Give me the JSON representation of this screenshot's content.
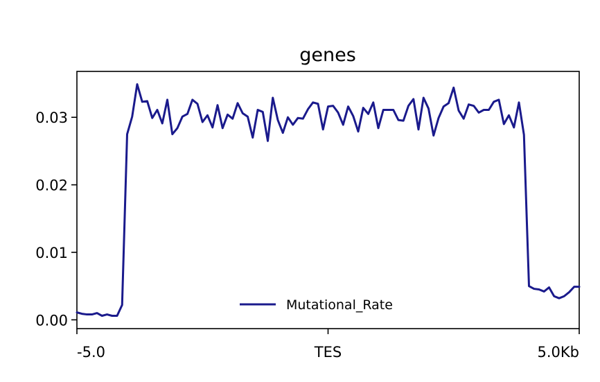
{
  "chart_data": {
    "type": "line",
    "title": "genes",
    "xlabel": "",
    "ylabel": "",
    "x_ticks": [
      "-5.0",
      "TES",
      "5.0Kb"
    ],
    "y_ticks": [
      "0.00",
      "0.01",
      "0.02",
      "0.03"
    ],
    "y_tick_values": [
      0.0,
      0.01,
      0.02,
      0.03
    ],
    "xlim": [
      -5.0,
      5.0
    ],
    "ylim": [
      -0.0013,
      0.0368
    ],
    "grid": false,
    "legend_position": "lower-center",
    "series": [
      {
        "name": "Mutational_Rate",
        "color": "#1a1a8c",
        "x": [
          -5.0,
          -4.9,
          -4.8,
          -4.7,
          -4.6,
          -4.5,
          -4.4,
          -4.3,
          -4.2,
          -4.1,
          -4.0,
          -3.9,
          -3.8,
          -3.7,
          -3.6,
          -3.5,
          -3.4,
          -3.3,
          -3.2,
          -3.1,
          -3.0,
          -2.9,
          -2.8,
          -2.7,
          -2.6,
          -2.5,
          -2.4,
          -2.3,
          -2.2,
          -2.1,
          -2.0,
          -1.9,
          -1.8,
          -1.7,
          -1.6,
          -1.5,
          -1.4,
          -1.3,
          -1.2,
          -1.1,
          -1.0,
          -0.9,
          -0.8,
          -0.7,
          -0.6,
          -0.5,
          -0.4,
          -0.3,
          -0.2,
          -0.1,
          0.0,
          0.1,
          0.2,
          0.3,
          0.4,
          0.5,
          0.6,
          0.7,
          0.8,
          0.9,
          1.0,
          1.1,
          1.2,
          1.3,
          1.4,
          1.5,
          1.6,
          1.7,
          1.8,
          1.9,
          2.0,
          2.1,
          2.2,
          2.3,
          2.4,
          2.5,
          2.6,
          2.7,
          2.8,
          2.9,
          3.0,
          3.1,
          3.2,
          3.3,
          3.4,
          3.5,
          3.6,
          3.7,
          3.8,
          3.9,
          4.0,
          4.1,
          4.2,
          4.3,
          4.4,
          4.5,
          4.6,
          4.7,
          4.8,
          4.9,
          5.0
        ],
        "values": [
          0.0011,
          0.0009,
          0.0008,
          0.0008,
          0.001,
          0.0006,
          0.0008,
          0.0006,
          0.0006,
          0.0022,
          0.0275,
          0.0301,
          0.0349,
          0.0323,
          0.0324,
          0.0299,
          0.0311,
          0.0291,
          0.0326,
          0.0275,
          0.0284,
          0.0301,
          0.0305,
          0.0326,
          0.032,
          0.0293,
          0.0303,
          0.0285,
          0.0318,
          0.0284,
          0.0304,
          0.0298,
          0.0321,
          0.0306,
          0.0301,
          0.027,
          0.0311,
          0.0308,
          0.0265,
          0.0329,
          0.0296,
          0.0277,
          0.03,
          0.0289,
          0.0299,
          0.0298,
          0.0312,
          0.0322,
          0.032,
          0.0282,
          0.0316,
          0.0317,
          0.0307,
          0.0289,
          0.0316,
          0.0302,
          0.0279,
          0.0314,
          0.0305,
          0.0322,
          0.0284,
          0.0311,
          0.0311,
          0.0311,
          0.0296,
          0.0295,
          0.0317,
          0.0327,
          0.0282,
          0.0329,
          0.0313,
          0.0273,
          0.0299,
          0.0316,
          0.0321,
          0.0344,
          0.031,
          0.0298,
          0.0319,
          0.0317,
          0.0307,
          0.0311,
          0.0311,
          0.0323,
          0.0326,
          0.029,
          0.0303,
          0.0285,
          0.0322,
          0.0274,
          0.005,
          0.0046,
          0.0045,
          0.0042,
          0.0048,
          0.0035,
          0.0032,
          0.0035,
          0.0041,
          0.0049,
          0.0049
        ]
      }
    ]
  }
}
